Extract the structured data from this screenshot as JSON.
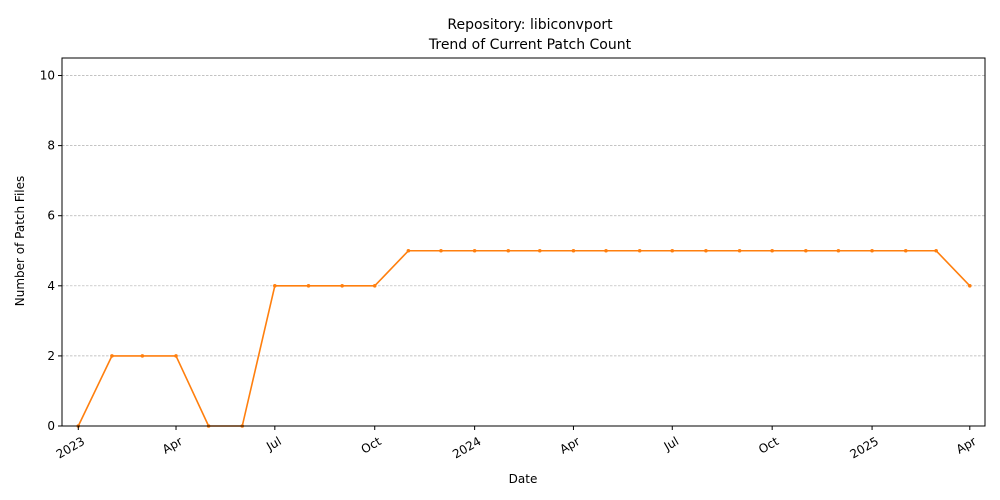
{
  "chart_data": {
    "type": "line",
    "title_lines": [
      "Repository: libiconvport",
      "Trend of Current Patch Count"
    ],
    "xlabel": "Date",
    "ylabel": "Number of Patch Files",
    "ylim": [
      0,
      10.5
    ],
    "xlim": [
      "2022-12-17",
      "2025-04-15"
    ],
    "y_ticks": [
      0,
      2,
      4,
      6,
      8,
      10
    ],
    "x_ticks": [
      {
        "date": "2023-01-01",
        "label": "2023"
      },
      {
        "date": "2023-04-01",
        "label": "Apr"
      },
      {
        "date": "2023-07-01",
        "label": "Jul"
      },
      {
        "date": "2023-10-01",
        "label": "Oct"
      },
      {
        "date": "2024-01-01",
        "label": "2024"
      },
      {
        "date": "2024-04-01",
        "label": "Apr"
      },
      {
        "date": "2024-07-01",
        "label": "Jul"
      },
      {
        "date": "2024-10-01",
        "label": "Oct"
      },
      {
        "date": "2025-01-01",
        "label": "2025"
      },
      {
        "date": "2025-04-01",
        "label": "Apr"
      }
    ],
    "grid": "y-dashed",
    "series": [
      {
        "color": "#ff7f0e",
        "points": [
          {
            "x": "2023-01-01",
            "y": 0
          },
          {
            "x": "2023-02-01",
            "y": 2
          },
          {
            "x": "2023-03-01",
            "y": 2
          },
          {
            "x": "2023-04-01",
            "y": 2
          },
          {
            "x": "2023-05-01",
            "y": 0
          },
          {
            "x": "2023-06-01",
            "y": 0
          },
          {
            "x": "2023-07-01",
            "y": 4
          },
          {
            "x": "2023-08-01",
            "y": 4
          },
          {
            "x": "2023-09-01",
            "y": 4
          },
          {
            "x": "2023-10-01",
            "y": 4
          },
          {
            "x": "2023-11-01",
            "y": 5
          },
          {
            "x": "2023-12-01",
            "y": 5
          },
          {
            "x": "2024-01-01",
            "y": 5
          },
          {
            "x": "2024-02-01",
            "y": 5
          },
          {
            "x": "2024-03-01",
            "y": 5
          },
          {
            "x": "2024-04-01",
            "y": 5
          },
          {
            "x": "2024-05-01",
            "y": 5
          },
          {
            "x": "2024-06-01",
            "y": 5
          },
          {
            "x": "2024-07-01",
            "y": 5
          },
          {
            "x": "2024-08-01",
            "y": 5
          },
          {
            "x": "2024-09-01",
            "y": 5
          },
          {
            "x": "2024-10-01",
            "y": 5
          },
          {
            "x": "2024-11-01",
            "y": 5
          },
          {
            "x": "2024-12-01",
            "y": 5
          },
          {
            "x": "2025-01-01",
            "y": 5
          },
          {
            "x": "2025-02-01",
            "y": 5
          },
          {
            "x": "2025-03-01",
            "y": 5
          },
          {
            "x": "2025-04-01",
            "y": 4
          }
        ]
      }
    ]
  }
}
